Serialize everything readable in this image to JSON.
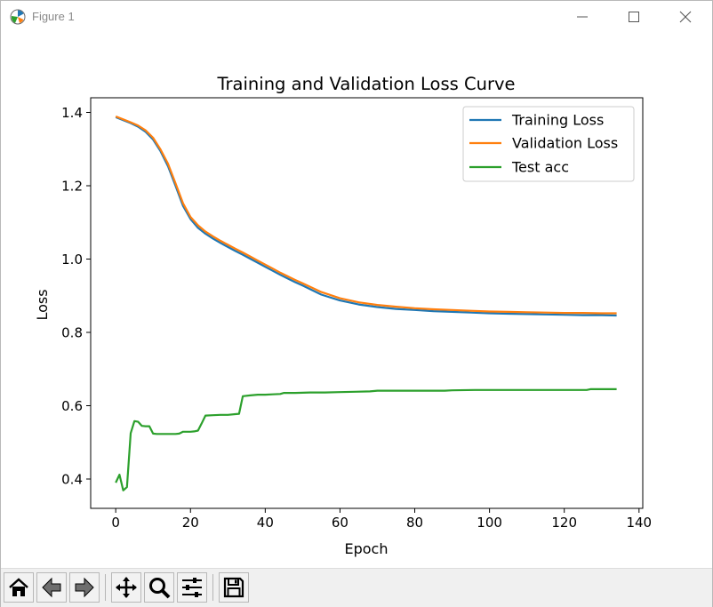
{
  "window": {
    "title": "Figure 1"
  },
  "toolbar": {
    "buttons": [
      "home-icon",
      "back-icon",
      "forward-icon",
      "pan-icon",
      "zoom-icon",
      "configure-subplots-icon",
      "save-icon"
    ]
  },
  "colors": {
    "training": "#1f77b4",
    "validation": "#ff7f0e",
    "test": "#2ca02c"
  },
  "chart_data": {
    "type": "line",
    "title": "Training and Validation Loss Curve",
    "xlabel": "Epoch",
    "ylabel": "Loss",
    "xlim": [
      -6.7,
      141
    ],
    "ylim": [
      0.32,
      1.44
    ],
    "xticks": [
      "0",
      "20",
      "40",
      "60",
      "80",
      "100",
      "120",
      "140"
    ],
    "yticks": [
      "0.4",
      "0.6",
      "0.8",
      "1.0",
      "1.2",
      "1.4"
    ],
    "legend": "upper right",
    "grid": false,
    "x": [
      0,
      2,
      4,
      6,
      8,
      10,
      12,
      14,
      16,
      18,
      20,
      22,
      24,
      26,
      28,
      30,
      32,
      34,
      36,
      38,
      40,
      42,
      44,
      46,
      48,
      50,
      55,
      60,
      65,
      70,
      75,
      80,
      85,
      90,
      95,
      100,
      105,
      110,
      115,
      120,
      125,
      130,
      134
    ],
    "series": [
      {
        "name": "Training Loss",
        "values": [
          1.387,
          1.379,
          1.371,
          1.361,
          1.347,
          1.326,
          1.294,
          1.253,
          1.2,
          1.145,
          1.109,
          1.085,
          1.069,
          1.056,
          1.044,
          1.033,
          1.022,
          1.012,
          1.001,
          0.99,
          0.979,
          0.968,
          0.957,
          0.947,
          0.937,
          0.928,
          0.903,
          0.887,
          0.876,
          0.869,
          0.864,
          0.861,
          0.858,
          0.856,
          0.854,
          0.852,
          0.851,
          0.85,
          0.849,
          0.848,
          0.847,
          0.847,
          0.846
        ]
      },
      {
        "name": "Validation Loss",
        "values": [
          1.389,
          1.381,
          1.373,
          1.364,
          1.351,
          1.331,
          1.299,
          1.26,
          1.207,
          1.152,
          1.115,
          1.092,
          1.075,
          1.062,
          1.05,
          1.039,
          1.028,
          1.018,
          1.007,
          0.996,
          0.985,
          0.974,
          0.963,
          0.953,
          0.943,
          0.934,
          0.91,
          0.893,
          0.882,
          0.875,
          0.87,
          0.866,
          0.863,
          0.861,
          0.859,
          0.857,
          0.856,
          0.855,
          0.854,
          0.853,
          0.853,
          0.852,
          0.852
        ]
      },
      {
        "name": "Test acc",
        "x": [
          0,
          1,
          2,
          3,
          4,
          5,
          6,
          7,
          8,
          9,
          10,
          11,
          12,
          14,
          16,
          17,
          18,
          20,
          21,
          22,
          23,
          24,
          26,
          28,
          30,
          32,
          33,
          34,
          36,
          38,
          40,
          42,
          44,
          45,
          48,
          52,
          56,
          60,
          64,
          68,
          70,
          76,
          84,
          88,
          90,
          96,
          100,
          110,
          120,
          126,
          127,
          130,
          134
        ],
        "values": [
          0.39,
          0.412,
          0.369,
          0.378,
          0.525,
          0.558,
          0.556,
          0.545,
          0.544,
          0.544,
          0.524,
          0.523,
          0.523,
          0.523,
          0.523,
          0.524,
          0.529,
          0.529,
          0.53,
          0.532,
          0.552,
          0.573,
          0.574,
          0.575,
          0.575,
          0.577,
          0.578,
          0.626,
          0.628,
          0.63,
          0.63,
          0.631,
          0.632,
          0.635,
          0.635,
          0.636,
          0.636,
          0.637,
          0.638,
          0.639,
          0.641,
          0.641,
          0.641,
          0.641,
          0.642,
          0.643,
          0.643,
          0.643,
          0.643,
          0.643,
          0.645,
          0.645,
          0.645
        ]
      }
    ]
  }
}
